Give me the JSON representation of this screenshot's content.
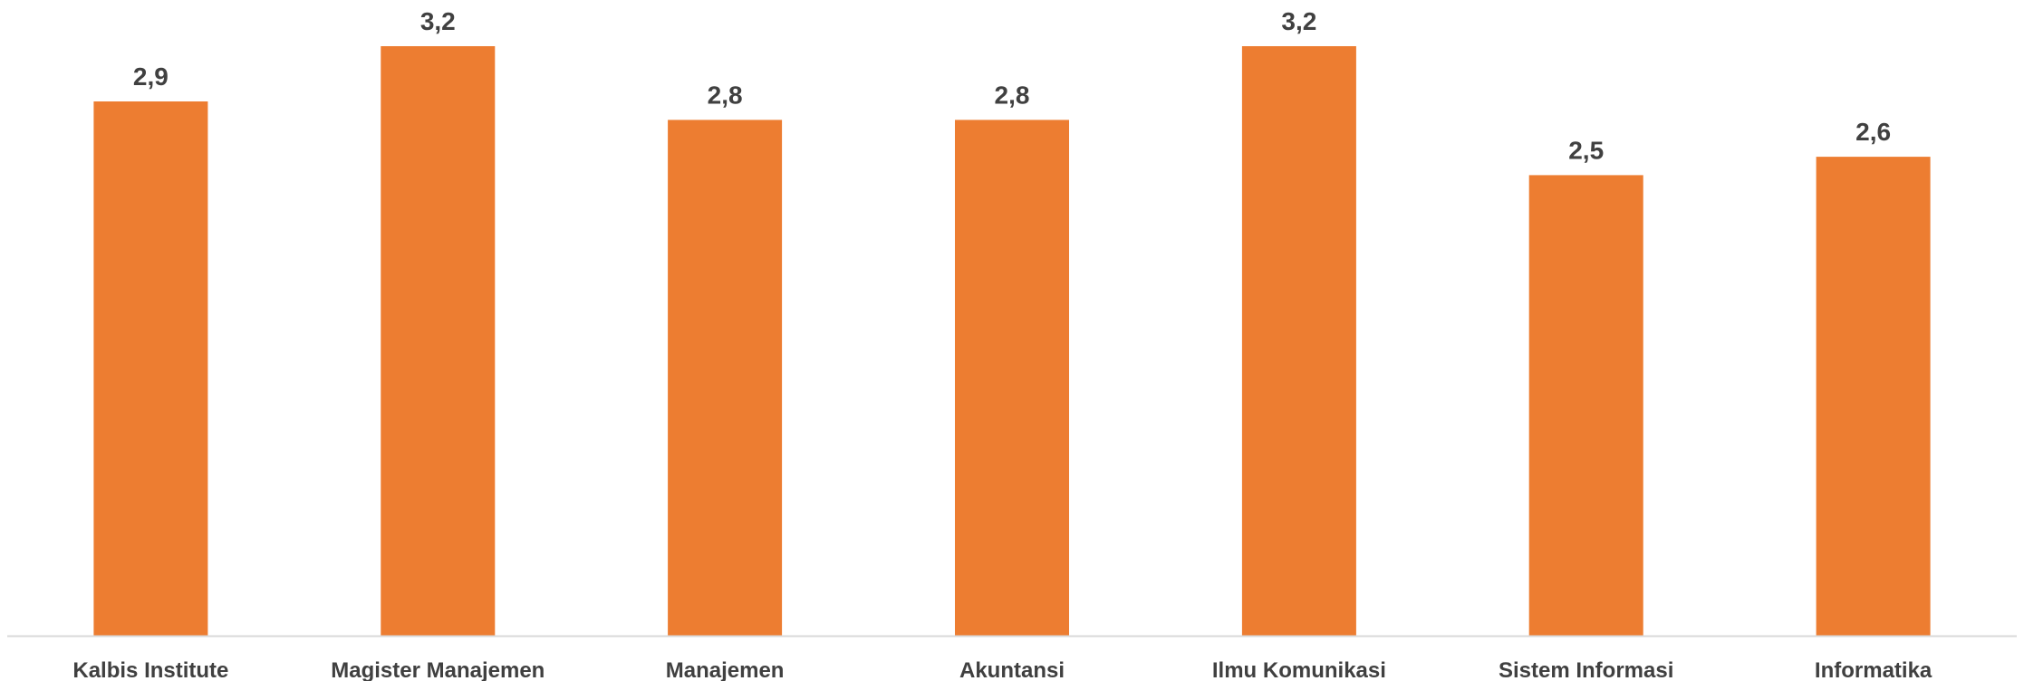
{
  "chart_data": {
    "type": "bar",
    "categories": [
      "Kalbis Institute",
      "Magister Manajemen",
      "Manajemen",
      "Akuntansi",
      "Ilmu Komunikasi",
      "Sistem Informasi",
      "Informatika"
    ],
    "values": [
      2.9,
      3.2,
      2.8,
      2.8,
      3.2,
      2.5,
      2.6
    ],
    "value_labels": [
      "2,9",
      "3,2",
      "2,8",
      "2,8",
      "3,2",
      "2,5",
      "2,6"
    ],
    "title": "",
    "xlabel": "",
    "ylabel": "",
    "ylim": [
      0,
      3.2
    ],
    "grid": false,
    "legend": "none",
    "colors": {
      "bar": "#ED7D31",
      "axis": "#D9D9D9",
      "text": "#404040"
    }
  }
}
